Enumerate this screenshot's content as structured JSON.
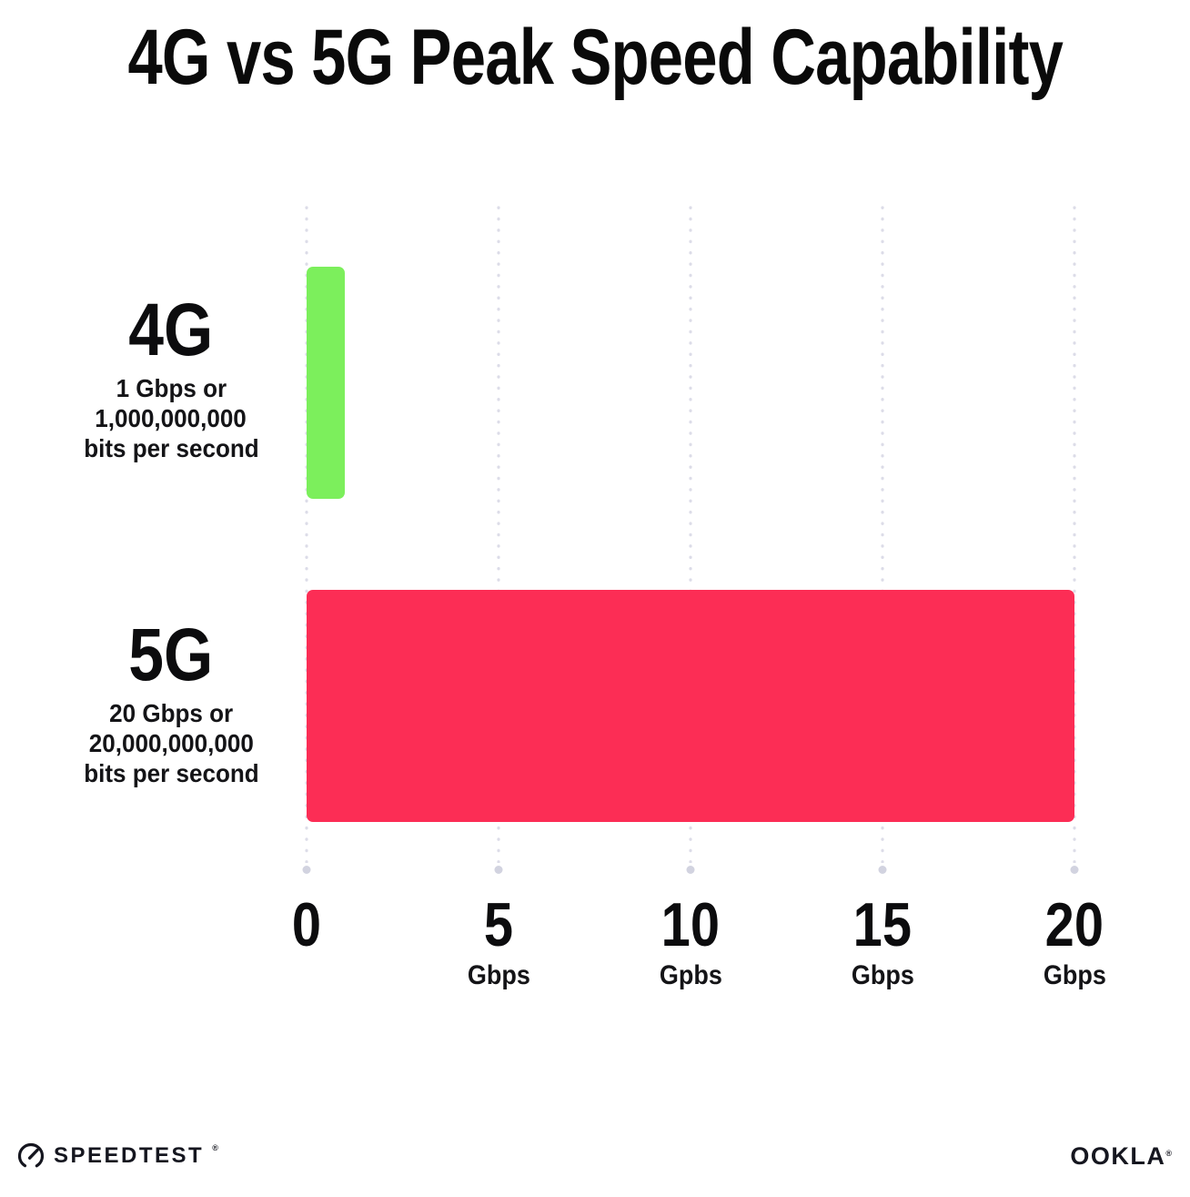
{
  "chart_data": {
    "type": "bar",
    "orientation": "horizontal",
    "title": "4G vs 5G Peak Speed Capability",
    "categories": [
      "4G",
      "5G"
    ],
    "values": [
      1,
      20
    ],
    "rows": [
      {
        "category": "4G",
        "value_gbps": 1,
        "color": "#7CEF5C",
        "sub_line1": "1 Gbps or",
        "sub_line2": "1,000,000,000",
        "sub_line3": "bits per second"
      },
      {
        "category": "5G",
        "value_gbps": 20,
        "color": "#FC2D55",
        "sub_line1": "20 Gbps or",
        "sub_line2": "20,000,000,000",
        "sub_line3": "bits per second"
      }
    ],
    "x_ticks": [
      {
        "value": 0,
        "label": "0",
        "unit": ""
      },
      {
        "value": 5,
        "label": "5",
        "unit": "Gbps"
      },
      {
        "value": 10,
        "label": "10",
        "unit": "Gpbs"
      },
      {
        "value": 15,
        "label": "15",
        "unit": "Gbps"
      },
      {
        "value": 20,
        "label": "20",
        "unit": "Gbps"
      }
    ],
    "xlabel": "",
    "ylabel": "",
    "xlim": [
      0,
      20
    ],
    "grid": "vertical-dotted",
    "grid_dot_color": "#dcdce8",
    "grid_end_dot_color": "#d2d3e0",
    "background": "#ffffff"
  },
  "footer": {
    "speedtest_label": "SPEEDTEST",
    "speedtest_tm": "®",
    "ookla_label": "OOKLA",
    "ookla_tm": "®",
    "logo_color": "#15161f"
  }
}
